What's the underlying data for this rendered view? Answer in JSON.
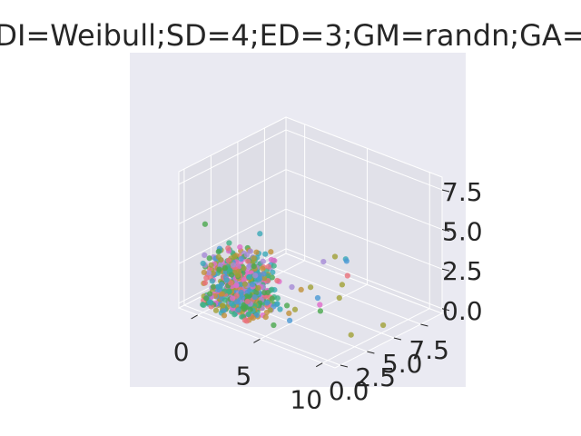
{
  "chart_data": {
    "type": "scatter",
    "projection": "3d",
    "title": "DI=Weibull;SD=4;ED=3;GM=randn;GA=",
    "xlabel": "",
    "ylabel": "",
    "zlabel": "",
    "x_ticks": [
      "0",
      "5",
      "10"
    ],
    "y_ticks": [
      "0.0",
      "2.5",
      "5.0",
      "7.5"
    ],
    "z_ticks": [
      "0.0",
      "2.5",
      "5.0",
      "7.5"
    ],
    "xlim": [
      -1.5,
      11
    ],
    "ylim": [
      -0.5,
      9.5
    ],
    "zlim": [
      -0.3,
      8.3
    ],
    "grid": true,
    "legend": "none",
    "pane_color": "#eaeaf2",
    "point_size": 5,
    "point_alpha": 0.8,
    "palette": [
      "#e8717b",
      "#c0903a",
      "#a0a036",
      "#4aa84e",
      "#3db085",
      "#3aa9b8",
      "#4a98d4",
      "#a58ad6",
      "#e06acb"
    ],
    "cluster": {
      "count": 620,
      "x_range": [
        -0.2,
        3.6
      ],
      "y_range": [
        0.0,
        3.0
      ],
      "z_range": [
        0.0,
        3.2
      ]
    },
    "sparse_points": [
      {
        "x": 0.0,
        "y": 0.2,
        "z": 5.2,
        "c": 3
      },
      {
        "x": 1.5,
        "y": 0.6,
        "z": 4.0,
        "c": 0
      },
      {
        "x": 2.5,
        "y": 2.4,
        "z": 4.6,
        "c": 5
      },
      {
        "x": 3.2,
        "y": 2.6,
        "z": 3.6,
        "c": 1
      },
      {
        "x": 1.0,
        "y": 0.3,
        "z": 3.4,
        "c": 2
      },
      {
        "x": 5.0,
        "y": 6.5,
        "z": 2.5,
        "c": 2
      },
      {
        "x": 5.0,
        "y": 7.5,
        "z": 2.0,
        "c": 5
      },
      {
        "x": 5.5,
        "y": 7.0,
        "z": 2.2,
        "c": 6
      },
      {
        "x": 4.5,
        "y": 6.0,
        "z": 2.2,
        "c": 7
      },
      {
        "x": 6.0,
        "y": 6.5,
        "z": 1.6,
        "c": 0
      },
      {
        "x": 6.0,
        "y": 6.0,
        "z": 1.2,
        "c": 2
      },
      {
        "x": 6.2,
        "y": 5.5,
        "z": 0.6,
        "c": 2
      },
      {
        "x": 5.5,
        "y": 4.5,
        "z": 0.3,
        "c": 8
      },
      {
        "x": 5.8,
        "y": 4.2,
        "z": 0.1,
        "c": 3
      },
      {
        "x": 5.5,
        "y": 4.3,
        "z": 0.8,
        "c": 6
      },
      {
        "x": 4.5,
        "y": 4.8,
        "z": 1.0,
        "c": 2
      },
      {
        "x": 4.0,
        "y": 4.5,
        "z": 0.8,
        "c": 1
      },
      {
        "x": 4.8,
        "y": 3.0,
        "z": 0.3,
        "c": 2
      },
      {
        "x": 4.5,
        "y": 2.6,
        "z": 0.6,
        "c": 3
      },
      {
        "x": 5.0,
        "y": 2.2,
        "z": 0.4,
        "c": 1
      },
      {
        "x": 4.8,
        "y": 1.6,
        "z": 0.8,
        "c": 5
      },
      {
        "x": 5.4,
        "y": 1.8,
        "z": 0.2,
        "c": 6
      },
      {
        "x": 4.0,
        "y": 1.2,
        "z": 0.2,
        "c": 1
      },
      {
        "x": 3.5,
        "y": 0.6,
        "z": 0.2,
        "c": 1
      },
      {
        "x": 3.2,
        "y": 0.2,
        "z": 0.1,
        "c": 0
      },
      {
        "x": 4.8,
        "y": 1.0,
        "z": 0.0,
        "c": 3
      },
      {
        "x": 9.2,
        "y": 3.1,
        "z": 0.0,
        "c": 2
      },
      {
        "x": 9.8,
        "y": 5.4,
        "z": 0.0,
        "c": 2
      },
      {
        "x": 3.8,
        "y": 2.0,
        "z": 1.6,
        "c": 4
      },
      {
        "x": 4.2,
        "y": 3.4,
        "z": 1.4,
        "c": 7
      }
    ]
  }
}
